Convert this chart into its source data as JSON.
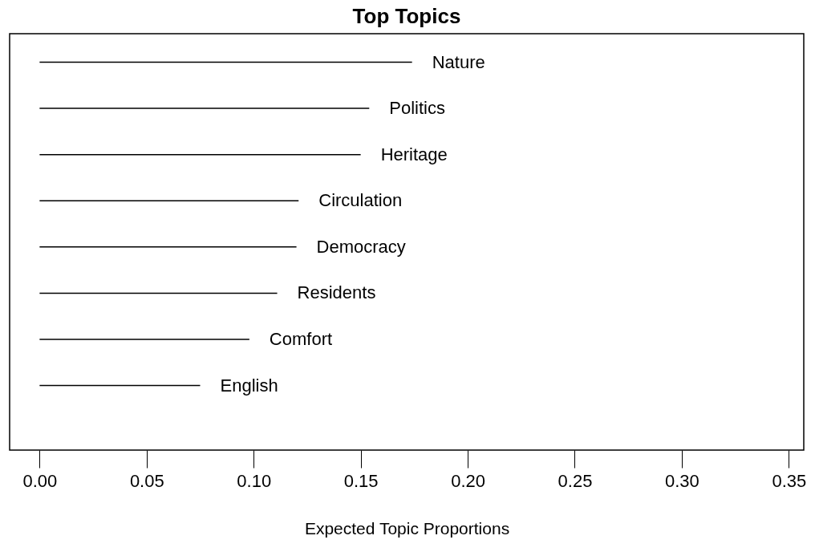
{
  "chart_data": {
    "type": "bar",
    "orientation": "horizontal",
    "title": "Top Topics",
    "xlabel": "Expected Topic Proportions",
    "categories": [
      "Nature",
      "Politics",
      "Heritage",
      "Circulation",
      "Democracy",
      "Residents",
      "Comfort",
      "English"
    ],
    "values": [
      0.174,
      0.154,
      0.15,
      0.121,
      0.12,
      0.111,
      0.098,
      0.075
    ],
    "color": "#000000",
    "xlim": [
      -0.014,
      0.357
    ],
    "xticks": [
      {
        "value": 0,
        "label": "0.00"
      },
      0.05,
      {
        "value": 0.1,
        "label": "0.10"
      },
      0.15,
      {
        "value": 0.2,
        "label": "0.20"
      },
      0.25,
      {
        "value": 0.3,
        "label": "0.30"
      },
      0.35
    ],
    "tick_labels": "x",
    "grid": false
  }
}
